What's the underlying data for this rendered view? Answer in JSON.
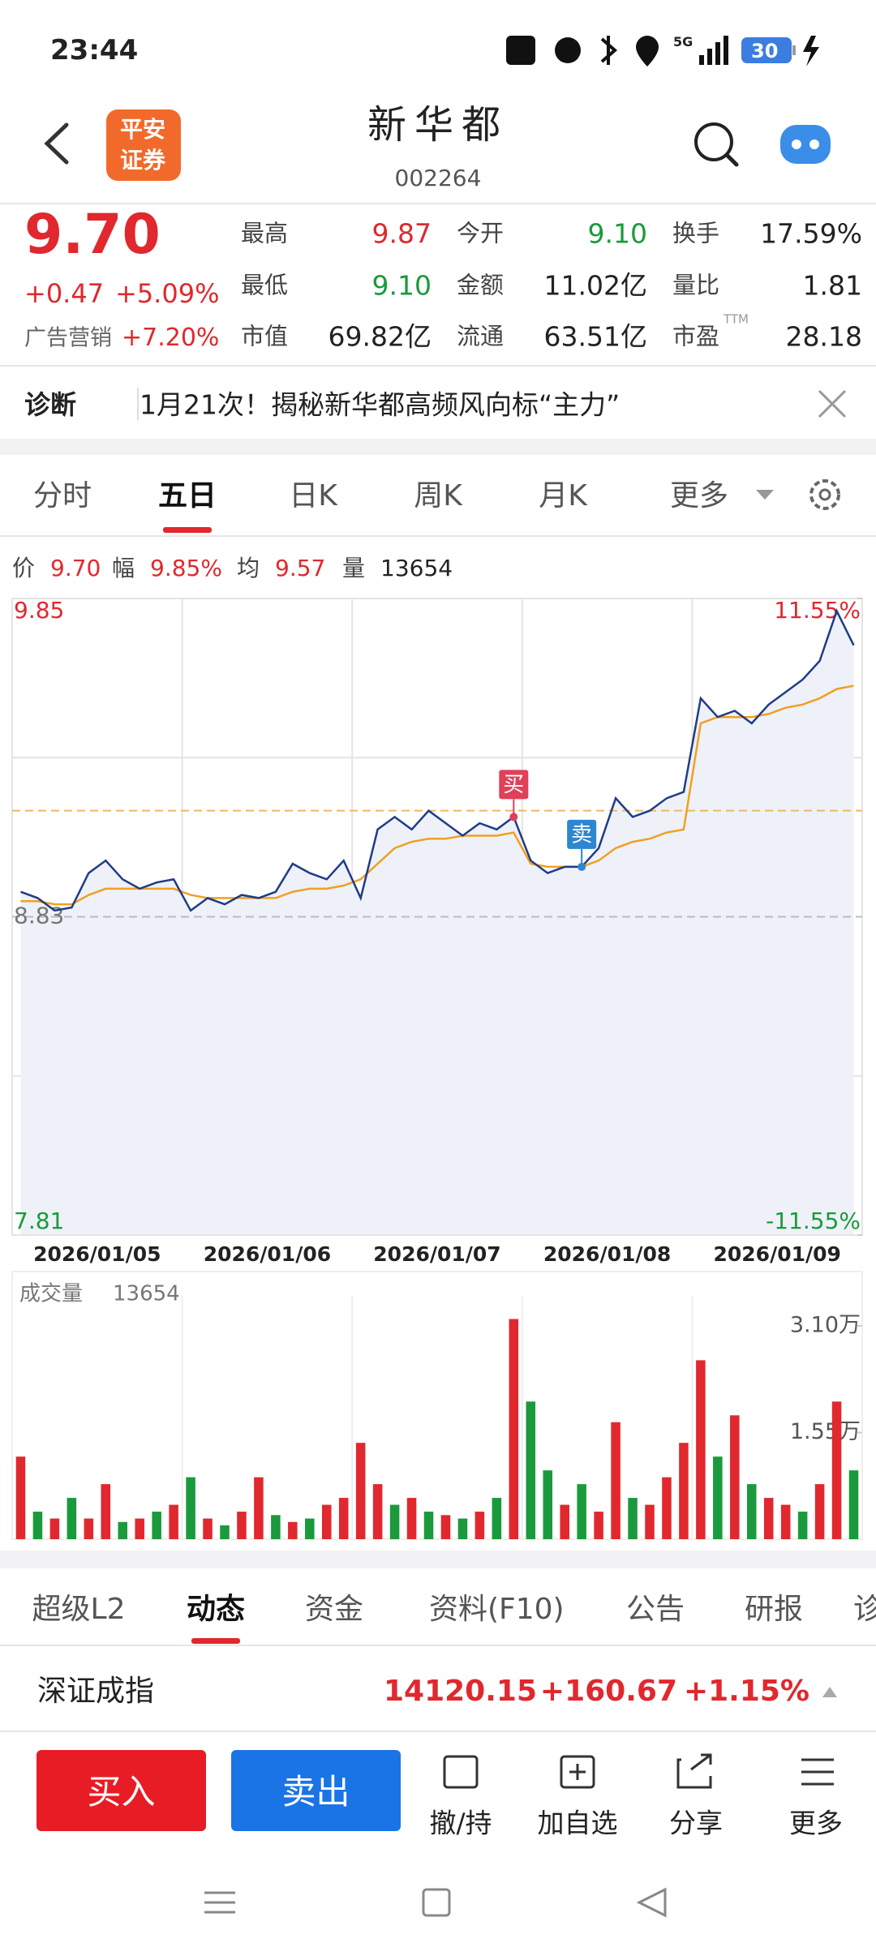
{
  "status_bar": {
    "time": "23:44",
    "network": "5G",
    "battery": "30"
  },
  "header": {
    "logo_lines": [
      "平安",
      "证券"
    ],
    "title": "新华都",
    "code": "002264"
  },
  "quote": {
    "price": "9.70",
    "change": "+0.47",
    "change_pct": "+5.09%",
    "sector": "广告营销",
    "sector_pct": "+7.20%",
    "pe_note": "TTM",
    "stats": [
      {
        "label": "最高",
        "value": "9.87",
        "color": "#e0282e"
      },
      {
        "label": "今开",
        "value": "9.10",
        "color": "#1a9a3c"
      },
      {
        "label": "换手",
        "value": "17.59%",
        "color": "#222222"
      },
      {
        "label": "最低",
        "value": "9.10",
        "color": "#1a9a3c"
      },
      {
        "label": "金额",
        "value": "11.02亿",
        "color": "#222222"
      },
      {
        "label": "量比",
        "value": "1.81",
        "color": "#222222"
      },
      {
        "label": "市值",
        "value": "69.82亿",
        "color": "#222222"
      },
      {
        "label": "流通",
        "value": "63.51亿",
        "color": "#222222"
      },
      {
        "label": "市盈",
        "value": "28.18",
        "color": "#222222"
      }
    ]
  },
  "notice": {
    "tag": "诊断",
    "text": "1月21次！揭秘新华都高频风向标“主力”"
  },
  "chart_tabs": {
    "items": [
      "分时",
      "五日",
      "日K",
      "周K",
      "月K",
      "更多"
    ],
    "active": 1
  },
  "chart_info": [
    {
      "label": "价",
      "value": "9.70",
      "color": "#e0282e"
    },
    {
      "label": "幅",
      "value": "9.85%",
      "color": "#e0282e"
    },
    {
      "label": "均",
      "value": "9.57",
      "color": "#e0282e"
    },
    {
      "label": "量",
      "value": "13654",
      "color": "#222222"
    }
  ],
  "chart_data": {
    "type": "intraday",
    "price_color": "#1f3c88",
    "avg_color": "#f0a020",
    "up_color": "#e0282e",
    "down_color": "#1a9a3c",
    "ylim": [
      7.81,
      9.85
    ],
    "yticks": [
      9.85,
      8.83,
      7.81
    ],
    "y2lim": [
      -11.55,
      11.55
    ],
    "y2ticks": [
      {
        "value": 11.55,
        "label": "11.55%"
      },
      {
        "value": -11.55,
        "label": "-11.55%"
      }
    ],
    "reference_line": 9.17,
    "days": [
      {
        "date": "2026/01/05",
        "price": [
          8.91,
          8.89,
          8.85,
          8.86,
          8.97,
          9.01,
          8.95,
          8.92,
          8.94,
          8.95
        ],
        "avg": [
          8.88,
          8.88,
          8.87,
          8.87,
          8.9,
          8.92,
          8.92,
          8.92,
          8.92,
          8.92
        ],
        "volume": [
          12000,
          4000,
          3000,
          6000,
          3000,
          8000,
          2500,
          3000,
          4000,
          5000
        ],
        "up": [
          true,
          false,
          true,
          false,
          true,
          true,
          false,
          true,
          false,
          true
        ]
      },
      {
        "date": "2026/01/06",
        "price": [
          8.85,
          8.89,
          8.87,
          8.9,
          8.89,
          8.91,
          9.0,
          8.97,
          8.95,
          9.01
        ],
        "avg": [
          8.9,
          8.89,
          8.89,
          8.89,
          8.89,
          8.89,
          8.91,
          8.92,
          8.92,
          8.93
        ],
        "volume": [
          9000,
          3000,
          2000,
          4000,
          9000,
          3500,
          2500,
          3000,
          5000,
          6000
        ],
        "up": [
          false,
          true,
          false,
          true,
          true,
          false,
          true,
          false,
          true,
          true
        ]
      },
      {
        "date": "2026/01/07",
        "price": [
          8.89,
          9.11,
          9.15,
          9.11,
          9.17,
          9.13,
          9.09,
          9.13,
          9.11,
          9.15
        ],
        "avg": [
          8.95,
          9.0,
          9.05,
          9.07,
          9.08,
          9.08,
          9.09,
          9.09,
          9.09,
          9.1
        ],
        "volume": [
          14000,
          8000,
          5000,
          6000,
          4000,
          3500,
          3000,
          4000,
          6000,
          32000
        ],
        "up": [
          true,
          true,
          false,
          true,
          false,
          true,
          false,
          true,
          false,
          true
        ]
      },
      {
        "date": "2026/01/08",
        "price": [
          9.01,
          8.97,
          8.99,
          8.99,
          9.05,
          9.21,
          9.15,
          9.17,
          9.21,
          9.23
        ],
        "avg": [
          9.0,
          8.99,
          8.99,
          8.99,
          9.01,
          9.05,
          9.07,
          9.08,
          9.1,
          9.11
        ],
        "volume": [
          20000,
          10000,
          5000,
          8000,
          4000,
          17000,
          6000,
          5000,
          9000,
          14000
        ],
        "up": [
          false,
          false,
          true,
          false,
          true,
          true,
          false,
          true,
          true,
          true
        ]
      },
      {
        "date": "2026/01/09",
        "price": [
          9.53,
          9.47,
          9.49,
          9.45,
          9.51,
          9.55,
          9.59,
          9.65,
          9.81,
          9.7
        ],
        "avg": [
          9.45,
          9.47,
          9.47,
          9.47,
          9.48,
          9.5,
          9.51,
          9.53,
          9.56,
          9.57
        ],
        "volume": [
          26000,
          12000,
          18000,
          8000,
          6000,
          5000,
          4000,
          8000,
          20000,
          10000
        ],
        "up": [
          true,
          false,
          true,
          false,
          true,
          true,
          false,
          true,
          true,
          false
        ]
      }
    ],
    "trades": [
      {
        "label": "买",
        "day": 2,
        "point": 9,
        "color": "#e0405a"
      },
      {
        "label": "卖",
        "day": 3,
        "point": 3,
        "color": "#2d86d0"
      }
    ],
    "volume_title": "成交量",
    "volume_value": 13654,
    "volume_ylim": [
      0,
      33000
    ],
    "volume_ticks": [
      {
        "value": 31000,
        "label": "3.10万"
      },
      {
        "value": 15500,
        "label": "1.55万"
      }
    ]
  },
  "info_tabs": {
    "items": [
      "超级L2",
      "动态",
      "资金",
      "资料(F10)",
      "公告",
      "研报",
      "诊"
    ],
    "active": 1
  },
  "index_row": {
    "name": "深证成指",
    "value": "14120.15",
    "change": "+160.67",
    "change_pct": "+1.15%"
  },
  "actions": {
    "buy": "买入",
    "sell": "卖出",
    "tools": [
      "撤/持",
      "加自选",
      "分享",
      "更多"
    ]
  }
}
